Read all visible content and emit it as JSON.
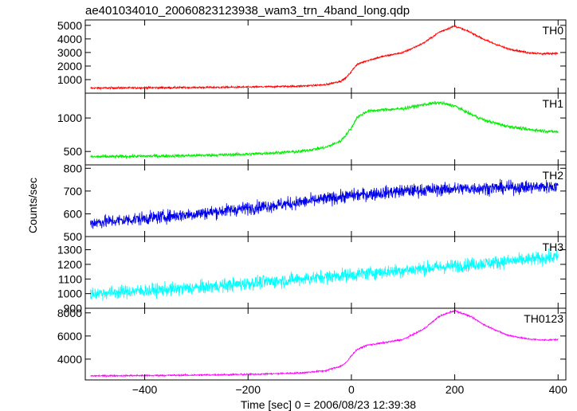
{
  "chart_data": {
    "type": "line",
    "title": "ae401034010_20060823123938_wam3_trn_4band_long.qdp",
    "xlabel": "Time [sec] 0 = 2006/08/23 12:39:38",
    "ylabel": "Counts/sec",
    "xlim": [
      -515,
      415
    ],
    "x_ticks": [
      -400,
      -200,
      0,
      200,
      400
    ],
    "grid": false,
    "series": [
      {
        "name": "TH0",
        "color": "#ff0000",
        "ylim": [
          0,
          5400
        ],
        "y_ticks": [
          1000,
          2000,
          3000,
          4000,
          5000
        ],
        "noise": 70,
        "x": [
          -505,
          -400,
          -300,
          -200,
          -100,
          -50,
          -20,
          -10,
          0,
          10,
          30,
          60,
          100,
          140,
          170,
          200,
          230,
          260,
          300,
          340,
          370,
          400
        ],
        "y": [
          380,
          400,
          420,
          450,
          520,
          620,
          900,
          1150,
          1600,
          2100,
          2400,
          2700,
          3000,
          3700,
          4500,
          4950,
          4500,
          3900,
          3300,
          3000,
          2900,
          2950
        ]
      },
      {
        "name": "TH1",
        "color": "#00ee00",
        "ylim": [
          300,
          1370
        ],
        "y_ticks": [
          500,
          1000
        ],
        "noise": 25,
        "x": [
          -505,
          -400,
          -300,
          -200,
          -100,
          -50,
          -20,
          0,
          10,
          30,
          60,
          100,
          140,
          170,
          200,
          230,
          260,
          300,
          340,
          370,
          400
        ],
        "y": [
          420,
          430,
          440,
          460,
          500,
          560,
          660,
          850,
          1000,
          1100,
          1120,
          1140,
          1200,
          1230,
          1180,
          1060,
          960,
          880,
          830,
          810,
          790
        ]
      },
      {
        "name": "TH2",
        "color": "#0000ee",
        "ylim": [
          500,
          815
        ],
        "y_ticks": [
          500,
          600,
          700,
          800
        ],
        "noise": 28,
        "x": [
          -505,
          -400,
          -300,
          -200,
          -100,
          0,
          100,
          200,
          300,
          400
        ],
        "y": [
          560,
          580,
          600,
          625,
          650,
          680,
          700,
          710,
          715,
          720
        ]
      },
      {
        "name": "TH3",
        "color": "#00ffff",
        "ylim": [
          900,
          1390
        ],
        "y_ticks": [
          900,
          1000,
          1100,
          1200,
          1300
        ],
        "noise": 45,
        "x": [
          -505,
          -400,
          -300,
          -200,
          -100,
          0,
          100,
          200,
          300,
          400
        ],
        "y": [
          1000,
          1020,
          1040,
          1070,
          1100,
          1130,
          1160,
          1190,
          1220,
          1250
        ]
      },
      {
        "name": "TH0123",
        "color": "#ff00ff",
        "ylim": [
          2200,
          8400
        ],
        "y_ticks": [
          4000,
          6000,
          8000
        ],
        "noise": 70,
        "x": [
          -505,
          -400,
          -300,
          -200,
          -100,
          -50,
          -20,
          -10,
          0,
          10,
          30,
          60,
          100,
          140,
          170,
          200,
          230,
          260,
          300,
          340,
          370,
          400
        ],
        "y": [
          2550,
          2580,
          2620,
          2680,
          2800,
          3000,
          3400,
          3700,
          4300,
          4800,
          5200,
          5400,
          5700,
          6600,
          7700,
          8200,
          7700,
          6900,
          6100,
          5750,
          5650,
          5700
        ]
      }
    ]
  }
}
